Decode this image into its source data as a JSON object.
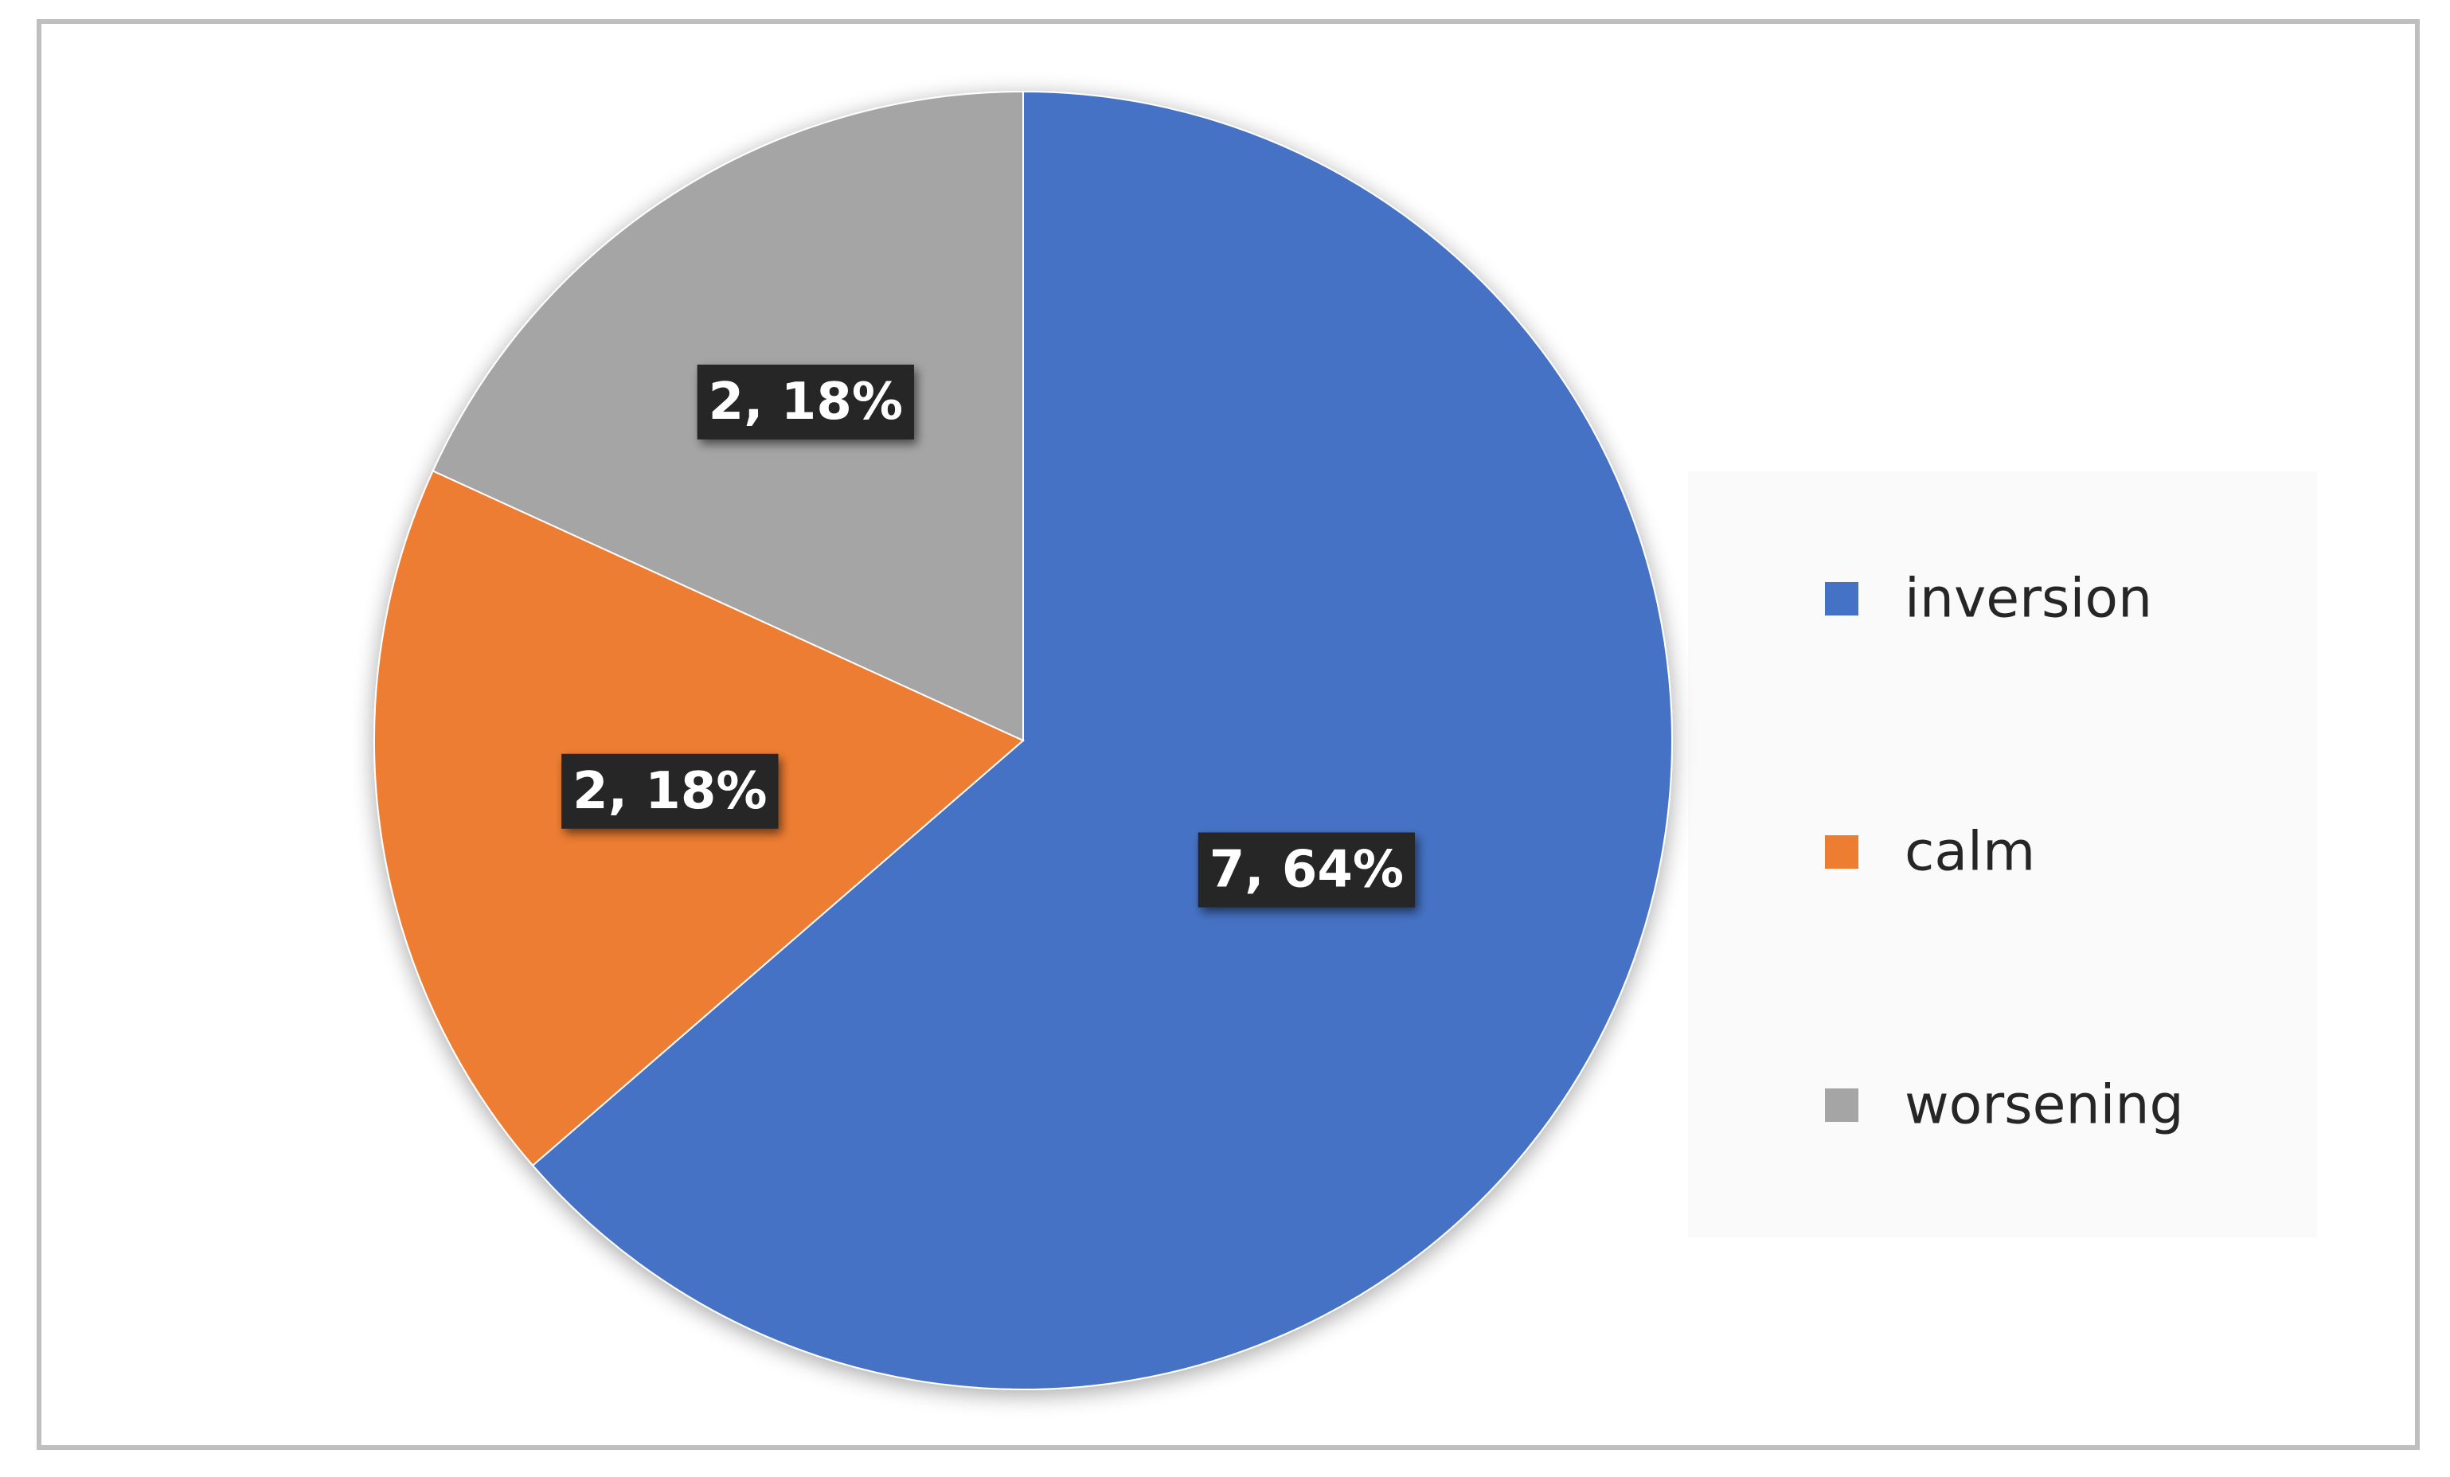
{
  "chart_data": {
    "type": "pie",
    "categories": [
      "inversion",
      "calm",
      "worsening"
    ],
    "values": [
      7,
      2,
      2
    ],
    "percent_labels": [
      "64%",
      "18%",
      "18%"
    ],
    "data_labels": [
      "7, 64%",
      "2, 18%",
      "2, 18%"
    ],
    "colors": [
      "#4472c4",
      "#ed7d31",
      "#a5a5a5"
    ],
    "start_angle_deg": 0,
    "direction": "clockwise",
    "legend": {
      "position": "right",
      "entries": [
        "inversion",
        "calm",
        "worsening"
      ]
    },
    "data_label_style": "dark box, white bold text"
  }
}
